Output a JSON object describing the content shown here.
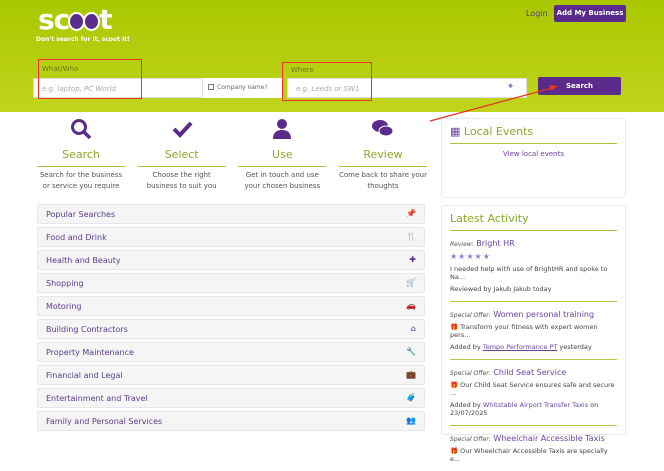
{
  "header": {
    "logo": "scoot",
    "tagline": "Don't search for it, scoot it!",
    "login": "Login",
    "add_business": "Add My Business"
  },
  "search": {
    "what_label": "What/Who",
    "what_placeholder": "e.g. laptop, PC World",
    "company_label": "Company name?",
    "where_label": "Where",
    "where_placeholder": "e.g. Leeds or SW1",
    "button": "Search"
  },
  "steps": [
    {
      "icon": "search-icon",
      "title": "Search",
      "desc": "Search for the business or service you require"
    },
    {
      "icon": "check-icon",
      "title": "Select",
      "desc": "Choose the right business to suit you"
    },
    {
      "icon": "user-icon",
      "title": "Use",
      "desc": "Get in touch and use your chosen business"
    },
    {
      "icon": "comments-icon",
      "title": "Review",
      "desc": "Come back to share your thoughts"
    }
  ],
  "categories": [
    {
      "label": "Popular Searches",
      "icon": "pin-icon",
      "glyph": "📌"
    },
    {
      "label": "Food and Drink",
      "icon": "cutlery-icon",
      "glyph": "🍴"
    },
    {
      "label": "Health and Beauty",
      "icon": "medkit-icon",
      "glyph": "✚"
    },
    {
      "label": "Shopping",
      "icon": "cart-icon",
      "glyph": "🛒"
    },
    {
      "label": "Motoring",
      "icon": "car-icon",
      "glyph": "🚗"
    },
    {
      "label": "Building Contractors",
      "icon": "home-icon",
      "glyph": "⌂"
    },
    {
      "label": "Property Maintenance",
      "icon": "wrench-icon",
      "glyph": "🔧"
    },
    {
      "label": "Financial and Legal",
      "icon": "briefcase-icon",
      "glyph": "💼"
    },
    {
      "label": "Entertainment and Travel",
      "icon": "suitcase-icon",
      "glyph": "🧳"
    },
    {
      "label": "Family and Personal Services",
      "icon": "users-icon",
      "glyph": "👥"
    }
  ],
  "local_events": {
    "title": "Local Events",
    "link": "View local events"
  },
  "activity": {
    "title": "Latest Activity",
    "items": [
      {
        "type": "Review:",
        "title": "Bright HR",
        "stars": 5,
        "text": "I needed help with use of BrightHR and spoke to Na...",
        "footer": "Reviewed by Jakub Jakub today"
      },
      {
        "type": "Special Offer:",
        "title": "Women personal training",
        "text": "Transform your fitness with expert women pers...",
        "footer_pre": "Added by",
        "footer_link": "Tempo Performance PT",
        "footer_post": "yesterday"
      },
      {
        "type": "Special Offer:",
        "title": "Child Seat Service",
        "text": "Our Child Seat Service ensures safe and secure ...",
        "footer_pre": "Added by",
        "footer_link": "Whitstable Airport Transfer Taxis",
        "footer_post": "on 23/07/2025"
      },
      {
        "type": "Special Offer:",
        "title": "Wheelchair Accessible Taxis",
        "text": "Our Wheelchair Accessible Taxis are specially e..."
      }
    ]
  },
  "colors": {
    "brand_green": "#a9c800",
    "brand_purple": "#5b2b8c",
    "annotation_red": "#e33322"
  }
}
